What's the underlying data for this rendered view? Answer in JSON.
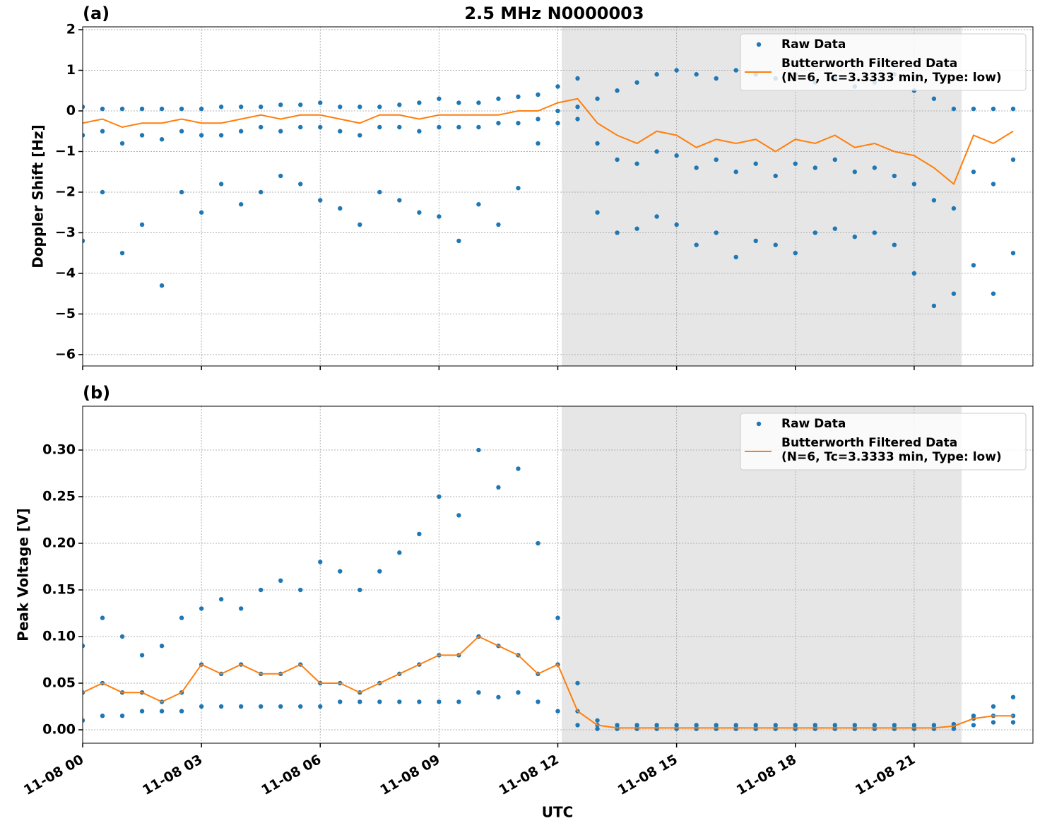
{
  "chart_data": [
    {
      "type": "line",
      "panel_label": "(a)",
      "title": "2.5 MHz N0000003",
      "y_label": "Doppler Shift [Hz]",
      "x": [
        0,
        0.5,
        1,
        1.5,
        2,
        2.5,
        3,
        3.5,
        4,
        4.5,
        5,
        5.5,
        6,
        6.5,
        7,
        7.5,
        8,
        8.5,
        9,
        9.5,
        10,
        10.5,
        11,
        11.5,
        12,
        12.5,
        13,
        13.5,
        14,
        14.5,
        15,
        15.5,
        16,
        16.5,
        17,
        17.5,
        18,
        18.5,
        19,
        19.5,
        20,
        20.5,
        21,
        21.5,
        22,
        22.5,
        23,
        23.5
      ],
      "xlim": [
        0,
        24
      ],
      "xticks": [
        0,
        3,
        6,
        9,
        12,
        15,
        18,
        21
      ],
      "ylim": [
        -6.28,
        2.07
      ],
      "yticks": [
        {
          "value": -6,
          "label": "−6"
        },
        {
          "value": -5,
          "label": "−5"
        },
        {
          "value": -4,
          "label": "−4"
        },
        {
          "value": -3,
          "label": "−3"
        },
        {
          "value": -2,
          "label": "−2"
        },
        {
          "value": -1,
          "label": "−1"
        },
        0,
        1,
        2
      ],
      "grid": true,
      "shaded_span": [
        12.1,
        22.2
      ],
      "legend": "upper right",
      "series": [
        {
          "name": "Raw Data",
          "style": "points",
          "color": "#1f77b4",
          "values": [
            [
              0.1,
              -0.6,
              -3.2
            ],
            [
              0.05,
              -0.5,
              -2.0
            ],
            [
              0.05,
              -0.8,
              -3.5
            ],
            [
              0.05,
              -0.6,
              -2.8
            ],
            [
              0.05,
              -0.7,
              -4.3
            ],
            [
              0.05,
              -0.5,
              -2.0
            ],
            [
              0.05,
              -0.6,
              -2.5
            ],
            [
              0.1,
              -0.6,
              -1.8
            ],
            [
              0.1,
              -0.5,
              -2.3
            ],
            [
              0.1,
              -0.4,
              -2.0
            ],
            [
              0.15,
              -0.5,
              -1.6
            ],
            [
              0.15,
              -0.4,
              -1.8
            ],
            [
              0.2,
              -0.4,
              -2.2
            ],
            [
              0.1,
              -0.5,
              -2.4
            ],
            [
              0.1,
              -0.6,
              -2.8
            ],
            [
              0.1,
              -0.4,
              -2.0
            ],
            [
              0.15,
              -0.4,
              -2.2
            ],
            [
              0.2,
              -0.5,
              -2.5
            ],
            [
              0.3,
              -0.4,
              -2.6
            ],
            [
              0.2,
              -0.4,
              -3.2
            ],
            [
              0.2,
              -0.4,
              -2.3
            ],
            [
              0.3,
              -0.3,
              -2.8
            ],
            [
              0.35,
              -0.3,
              -1.9
            ],
            [
              0.4,
              -0.2,
              -0.8
            ],
            [
              0.6,
              0.0,
              -0.3
            ],
            [
              0.8,
              0.1,
              -0.2
            ],
            [
              0.3,
              -0.8,
              -2.5
            ],
            [
              0.5,
              -1.2,
              -3.0
            ],
            [
              0.7,
              -1.3,
              -2.9
            ],
            [
              0.9,
              -1.0,
              -2.6
            ],
            [
              1.0,
              -1.1,
              -2.8
            ],
            [
              0.9,
              -1.4,
              -3.3
            ],
            [
              0.8,
              -1.2,
              -3.0
            ],
            [
              1.0,
              -1.5,
              -3.6
            ],
            [
              0.9,
              -1.3,
              -3.2
            ],
            [
              0.8,
              -1.6,
              -3.3
            ],
            [
              0.9,
              -1.3,
              -3.5
            ],
            [
              0.7,
              -1.4,
              -3.0
            ],
            [
              0.8,
              -1.2,
              -2.9
            ],
            [
              0.6,
              -1.5,
              -3.1
            ],
            [
              0.7,
              -1.4,
              -3.0
            ],
            [
              0.9,
              -1.6,
              -3.3
            ],
            [
              0.5,
              -1.8,
              -4.0
            ],
            [
              0.3,
              -2.2,
              -4.8
            ],
            [
              0.05,
              -2.4,
              -4.5
            ],
            [
              0.05,
              -1.5,
              -3.8
            ],
            [
              0.05,
              -1.8,
              -4.5
            ],
            [
              0.05,
              -1.2,
              -3.5
            ]
          ]
        },
        {
          "name": "Butterworth Filtered Data",
          "detail": "(N=6, Tc=3.3333 min, Type: low)",
          "style": "line",
          "color": "#ff7f0e",
          "values": [
            -0.3,
            -0.2,
            -0.4,
            -0.3,
            -0.3,
            -0.2,
            -0.3,
            -0.3,
            -0.2,
            -0.1,
            -0.2,
            -0.1,
            -0.1,
            -0.2,
            -0.3,
            -0.1,
            -0.1,
            -0.2,
            -0.1,
            -0.1,
            -0.1,
            -0.1,
            0.0,
            0.0,
            0.2,
            0.3,
            -0.3,
            -0.6,
            -0.8,
            -0.5,
            -0.6,
            -0.9,
            -0.7,
            -0.8,
            -0.7,
            -1.0,
            -0.7,
            -0.8,
            -0.6,
            -0.9,
            -0.8,
            -1.0,
            -1.1,
            -1.4,
            -1.8,
            -0.6,
            -0.8,
            -0.5
          ]
        }
      ]
    },
    {
      "type": "line",
      "panel_label": "(b)",
      "y_label": "Peak Voltage [V]",
      "x_label": "UTC",
      "x": [
        0,
        0.5,
        1,
        1.5,
        2,
        2.5,
        3,
        3.5,
        4,
        4.5,
        5,
        5.5,
        6,
        6.5,
        7,
        7.5,
        8,
        8.5,
        9,
        9.5,
        10,
        10.5,
        11,
        11.5,
        12,
        12.5,
        13,
        13.5,
        14,
        14.5,
        15,
        15.5,
        16,
        16.5,
        17,
        17.5,
        18,
        18.5,
        19,
        19.5,
        20,
        20.5,
        21,
        21.5,
        22,
        22.5,
        23,
        23.5
      ],
      "xlim": [
        0,
        24
      ],
      "xticks": [
        {
          "value": 0,
          "label": "11-08 00"
        },
        {
          "value": 3,
          "label": "11-08 03"
        },
        {
          "value": 6,
          "label": "11-08 06"
        },
        {
          "value": 9,
          "label": "11-08 09"
        },
        {
          "value": 12,
          "label": "11-08 12"
        },
        {
          "value": 15,
          "label": "11-08 15"
        },
        {
          "value": 18,
          "label": "11-08 18"
        },
        {
          "value": 21,
          "label": "11-08 21"
        }
      ],
      "ylim": [
        -0.0144,
        0.347
      ],
      "yticks": [
        {
          "value": 0,
          "label": "0.00"
        },
        0.05,
        {
          "value": 0.1,
          "label": "0.10"
        },
        0.15,
        {
          "value": 0.2,
          "label": "0.20"
        },
        0.25,
        {
          "value": 0.3,
          "label": "0.30"
        }
      ],
      "grid": true,
      "shaded_span": [
        12.1,
        22.2
      ],
      "legend": "upper right",
      "series": [
        {
          "name": "Raw Data",
          "style": "points",
          "color": "#1f77b4",
          "values": [
            [
              0.09,
              0.04,
              0.01
            ],
            [
              0.12,
              0.05,
              0.015
            ],
            [
              0.1,
              0.04,
              0.015
            ],
            [
              0.08,
              0.04,
              0.02
            ],
            [
              0.09,
              0.03,
              0.02
            ],
            [
              0.12,
              0.04,
              0.02
            ],
            [
              0.13,
              0.07,
              0.025
            ],
            [
              0.14,
              0.06,
              0.025
            ],
            [
              0.13,
              0.07,
              0.025
            ],
            [
              0.15,
              0.06,
              0.025
            ],
            [
              0.16,
              0.06,
              0.025
            ],
            [
              0.15,
              0.07,
              0.025
            ],
            [
              0.18,
              0.05,
              0.025
            ],
            [
              0.17,
              0.05,
              0.03
            ],
            [
              0.15,
              0.04,
              0.03
            ],
            [
              0.17,
              0.05,
              0.03
            ],
            [
              0.19,
              0.06,
              0.03
            ],
            [
              0.21,
              0.07,
              0.03
            ],
            [
              0.25,
              0.08,
              0.03
            ],
            [
              0.23,
              0.08,
              0.03
            ],
            [
              0.3,
              0.1,
              0.04
            ],
            [
              0.26,
              0.09,
              0.035
            ],
            [
              0.28,
              0.08,
              0.04
            ],
            [
              0.2,
              0.06,
              0.03
            ],
            [
              0.12,
              0.07,
              0.02
            ],
            [
              0.05,
              0.02,
              0.005
            ],
            [
              0.01,
              0.005,
              0.001
            ],
            [
              0.005,
              0.002,
              0.001
            ],
            [
              0.005,
              0.002,
              0.001
            ],
            [
              0.005,
              0.002,
              0.001
            ],
            [
              0.005,
              0.002,
              0.001
            ],
            [
              0.005,
              0.002,
              0.001
            ],
            [
              0.005,
              0.002,
              0.001
            ],
            [
              0.005,
              0.002,
              0.001
            ],
            [
              0.005,
              0.002,
              0.001
            ],
            [
              0.005,
              0.002,
              0.001
            ],
            [
              0.005,
              0.002,
              0.001
            ],
            [
              0.005,
              0.002,
              0.001
            ],
            [
              0.005,
              0.002,
              0.001
            ],
            [
              0.005,
              0.002,
              0.001
            ],
            [
              0.005,
              0.002,
              0.001
            ],
            [
              0.005,
              0.002,
              0.001
            ],
            [
              0.005,
              0.002,
              0.001
            ],
            [
              0.005,
              0.002,
              0.001
            ],
            [
              0.006,
              0.004,
              0.001
            ],
            [
              0.015,
              0.012,
              0.005
            ],
            [
              0.025,
              0.015,
              0.008
            ],
            [
              0.035,
              0.015,
              0.008
            ]
          ]
        },
        {
          "name": "Butterworth Filtered Data",
          "detail": "(N=6, Tc=3.3333 min, Type: low)",
          "style": "line",
          "color": "#ff7f0e",
          "values": [
            0.04,
            0.05,
            0.04,
            0.04,
            0.03,
            0.04,
            0.07,
            0.06,
            0.07,
            0.06,
            0.06,
            0.07,
            0.05,
            0.05,
            0.04,
            0.05,
            0.06,
            0.07,
            0.08,
            0.08,
            0.1,
            0.09,
            0.08,
            0.06,
            0.07,
            0.02,
            0.005,
            0.002,
            0.002,
            0.002,
            0.002,
            0.002,
            0.002,
            0.002,
            0.002,
            0.002,
            0.002,
            0.002,
            0.002,
            0.002,
            0.002,
            0.002,
            0.002,
            0.002,
            0.004,
            0.012,
            0.015,
            0.015
          ]
        }
      ]
    }
  ]
}
